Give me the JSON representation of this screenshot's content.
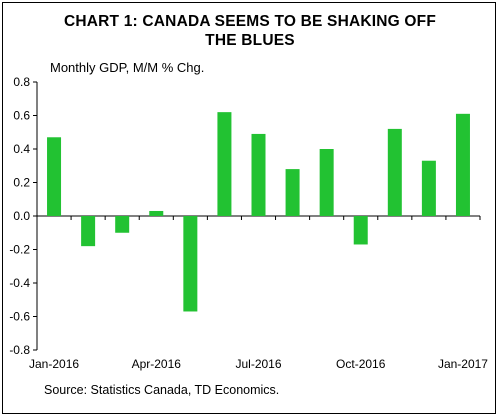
{
  "chart_data": {
    "type": "bar",
    "title_lines": [
      "CHART 1: CANADA SEEMS TO BE SHAKING OFF",
      "THE BLUES"
    ],
    "ylabel": "Monthly GDP, M/M % Chg.",
    "xlabel": "",
    "source": "Source: Statistics Canada, TD Economics.",
    "categories": [
      "Jan-2016",
      "Feb-2016",
      "Mar-2016",
      "Apr-2016",
      "May-2016",
      "Jun-2016",
      "Jul-2016",
      "Aug-2016",
      "Sep-2016",
      "Oct-2016",
      "Nov-2016",
      "Dec-2016",
      "Jan-2017"
    ],
    "x_tick_labels": [
      "Jan-2016",
      "",
      "",
      "Apr-2016",
      "",
      "",
      "Jul-2016",
      "",
      "",
      "Oct-2016",
      "",
      "",
      "Jan-2017"
    ],
    "values": [
      0.47,
      -0.18,
      -0.1,
      0.03,
      -0.57,
      0.62,
      0.49,
      0.28,
      0.4,
      -0.17,
      0.52,
      0.33,
      0.61
    ],
    "ylim": [
      -0.8,
      0.8
    ],
    "y_ticks": [
      "0.8",
      "0.6",
      "0.4",
      "0.2",
      "0.0",
      "-0.2",
      "-0.4",
      "-0.6",
      "-0.8"
    ],
    "bar_color": "#22c232",
    "grid": false,
    "legend": "none"
  }
}
